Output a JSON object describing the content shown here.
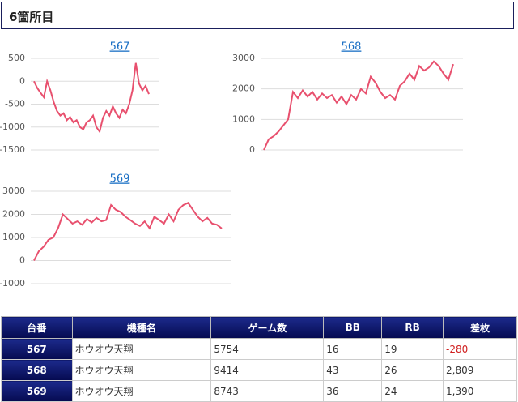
{
  "header": {
    "title": "6箇所目"
  },
  "chart_data": [
    {
      "type": "line",
      "title": "567",
      "color": "#e8506e",
      "ylim": [
        -1500,
        500
      ],
      "yticks": [
        500,
        0,
        -500,
        -1000,
        -1500
      ],
      "grid": true,
      "values": [
        0,
        -150,
        -250,
        -350,
        0,
        -200,
        -450,
        -650,
        -750,
        -700,
        -850,
        -780,
        -900,
        -850,
        -1000,
        -1050,
        -900,
        -850,
        -750,
        -1000,
        -1100,
        -800,
        -650,
        -750,
        -550,
        -700,
        -800,
        -620,
        -700,
        -500,
        -200,
        400,
        -50,
        -200,
        -100,
        -280
      ]
    },
    {
      "type": "line",
      "title": "568",
      "color": "#e8506e",
      "ylim": [
        0,
        3000
      ],
      "yticks": [
        0,
        1000,
        2000,
        3000
      ],
      "grid": true,
      "values": [
        0,
        350,
        450,
        600,
        800,
        1000,
        1900,
        1700,
        1950,
        1750,
        1900,
        1650,
        1850,
        1700,
        1800,
        1550,
        1750,
        1500,
        1800,
        1650,
        2000,
        1850,
        2400,
        2200,
        1900,
        1700,
        1800,
        1650,
        2100,
        2250,
        2500,
        2300,
        2750,
        2600,
        2700,
        2900,
        2750,
        2500,
        2300,
        2809
      ]
    },
    {
      "type": "line",
      "title": "569",
      "color": "#e8506e",
      "ylim": [
        -1000,
        3000
      ],
      "yticks": [
        3000,
        2000,
        1000,
        0,
        -1000
      ],
      "grid": true,
      "values": [
        0,
        400,
        600,
        900,
        1000,
        1400,
        2000,
        1800,
        1600,
        1700,
        1550,
        1800,
        1650,
        1850,
        1700,
        1750,
        2400,
        2200,
        2100,
        1900,
        1750,
        1600,
        1500,
        1700,
        1400,
        1900,
        1750,
        1600,
        2000,
        1700,
        2200,
        2400,
        2500,
        2200,
        1900,
        1700,
        1850,
        1600,
        1550,
        1390
      ]
    }
  ],
  "table": {
    "header": [
      "台番",
      "機種名",
      "ゲーム数",
      "BB",
      "RB",
      "差枚"
    ],
    "rows": [
      [
        "567",
        "ホウオウ天翔",
        "5754",
        "16",
        "19",
        "-280"
      ],
      [
        "568",
        "ホウオウ天翔",
        "9414",
        "43",
        "26",
        "2,809"
      ],
      [
        "569",
        "ホウオウ天翔",
        "8743",
        "36",
        "24",
        "1,390"
      ]
    ]
  }
}
